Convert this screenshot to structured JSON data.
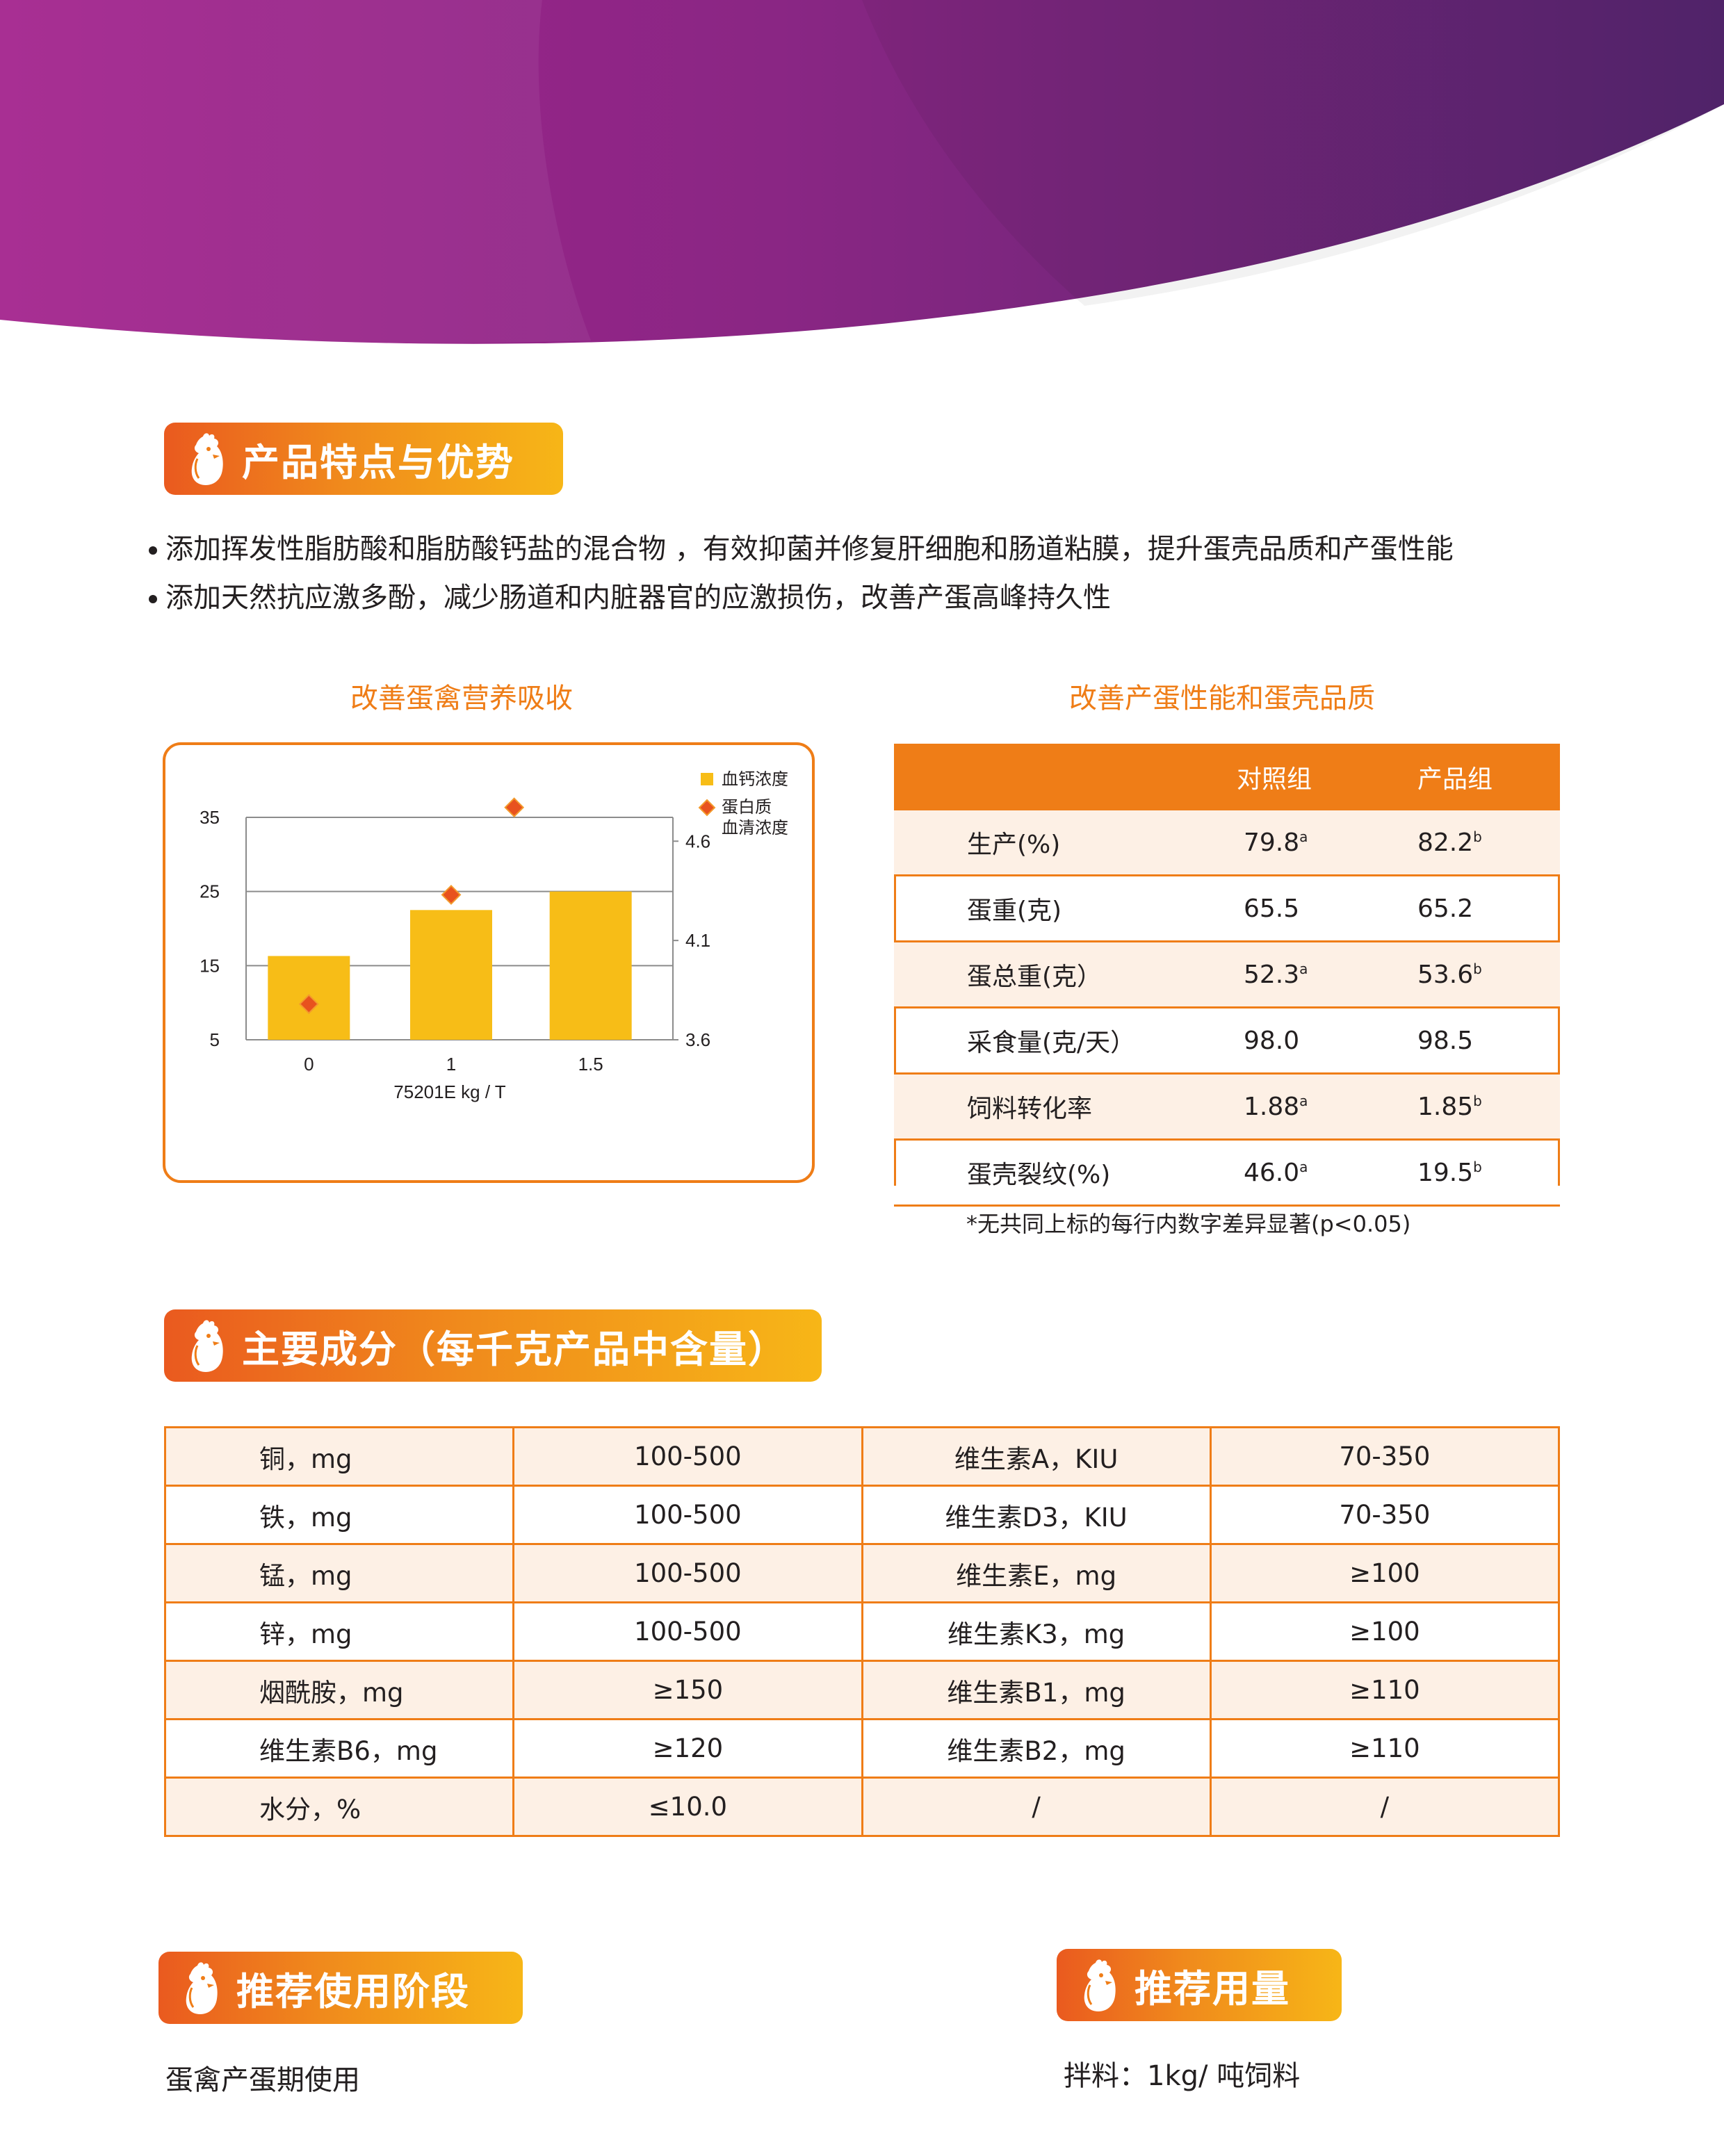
{
  "colors": {
    "accent": "#ef7d17",
    "banner_left": "#a3228d",
    "banner_right": "#5a2574",
    "row_shade": "#fdf0e5",
    "bar": "#f7bd17",
    "diamond": "#e8521e"
  },
  "section_features": {
    "title": "产品特点与优势",
    "icon": "hen-icon"
  },
  "features": [
    "添加挥发性脂肪酸和脂肪酸钙盐的混合物 ，有效抑菌并修复肝细胞和肠道粘膜，提升蛋壳品质和产蛋性能",
    "添加天然抗应激多酚，减少肠道和内脏器官的应激损伤，改善产蛋高峰持久性"
  ],
  "chart_title": "改善蛋禽营养吸收",
  "table_title": "改善产蛋性能和蛋壳品质",
  "chart_data": {
    "type": "bar",
    "categories": [
      "0",
      "1",
      "1.5"
    ],
    "xlabel": "75201E  kg / T",
    "series": [
      {
        "name": "血钙浓度",
        "kind": "bar",
        "axis": "left",
        "values": [
          16.3,
          22.5,
          25.0
        ]
      },
      {
        "name": "蛋白质\n血清浓度",
        "kind": "scatter",
        "axis": "right",
        "values": [
          3.78,
          4.33,
          4.77
        ]
      }
    ],
    "left_axis": {
      "ticks": [
        "5",
        "15",
        "25",
        "35"
      ],
      "ylim": [
        5,
        35
      ]
    },
    "right_axis": {
      "ticks": [
        "3.6",
        "4.1",
        "4.6"
      ],
      "ylim": [
        3.6,
        4.72
      ]
    },
    "legend": [
      {
        "label": "血钙浓度"
      },
      {
        "label_lines": [
          "蛋白质",
          "血清浓度"
        ]
      }
    ],
    "legend_position": "top-right",
    "grid": true
  },
  "perf_table": {
    "headers": [
      "",
      "对照组",
      "产品组"
    ],
    "rows": [
      {
        "label": "生产(%)",
        "control": "79.8",
        "control_sup": "a",
        "product": "82.2",
        "product_sup": "b"
      },
      {
        "label": "蛋重(克)",
        "control": "65.5",
        "control_sup": "",
        "product": "65.2",
        "product_sup": ""
      },
      {
        "label": "蛋总重(克）",
        "control": "52.3",
        "control_sup": "a",
        "product": "53.6",
        "product_sup": "b"
      },
      {
        "label": "采食量(克/天）",
        "control": "98.0",
        "control_sup": "",
        "product": "98.5",
        "product_sup": ""
      },
      {
        "label": "饲料转化率",
        "control": "1.88",
        "control_sup": "a",
        "product": "1.85",
        "product_sup": "b"
      },
      {
        "label": "蛋壳裂纹(%)",
        "control": "46.0",
        "control_sup": "a",
        "product": "19.5",
        "product_sup": "b"
      }
    ]
  },
  "footnote": "*无共同上标的每行内数字差异显著(p<0.05)",
  "section_ingredients": {
    "title": "主要成分（每千克产品中含量）",
    "icon": "hen-icon"
  },
  "ingredients": [
    [
      "铜，mg",
      "100-500",
      "维生素A，KIU",
      "70-350"
    ],
    [
      "铁，mg",
      "100-500",
      "维生素D3，KIU",
      "70-350"
    ],
    [
      "锰，mg",
      "100-500",
      "维生素E，mg",
      "≥100"
    ],
    [
      "锌，mg",
      "100-500",
      "维生素K3，mg",
      "≥100"
    ],
    [
      "烟酰胺，mg",
      "≥150",
      "维生素B1，mg",
      "≥110"
    ],
    [
      "维生素B6，mg",
      "≥120",
      "维生素B2，mg",
      "≥110"
    ],
    [
      "水分，%",
      "≤10.0",
      "/",
      "/"
    ]
  ],
  "section_stage": {
    "title": "推荐使用阶段",
    "icon": "hen-icon"
  },
  "stage_text": "蛋禽产蛋期使用",
  "section_dosage": {
    "title": "推荐用量",
    "icon": "hen-icon"
  },
  "dosage_text": "拌料：1kg/ 吨饲料"
}
